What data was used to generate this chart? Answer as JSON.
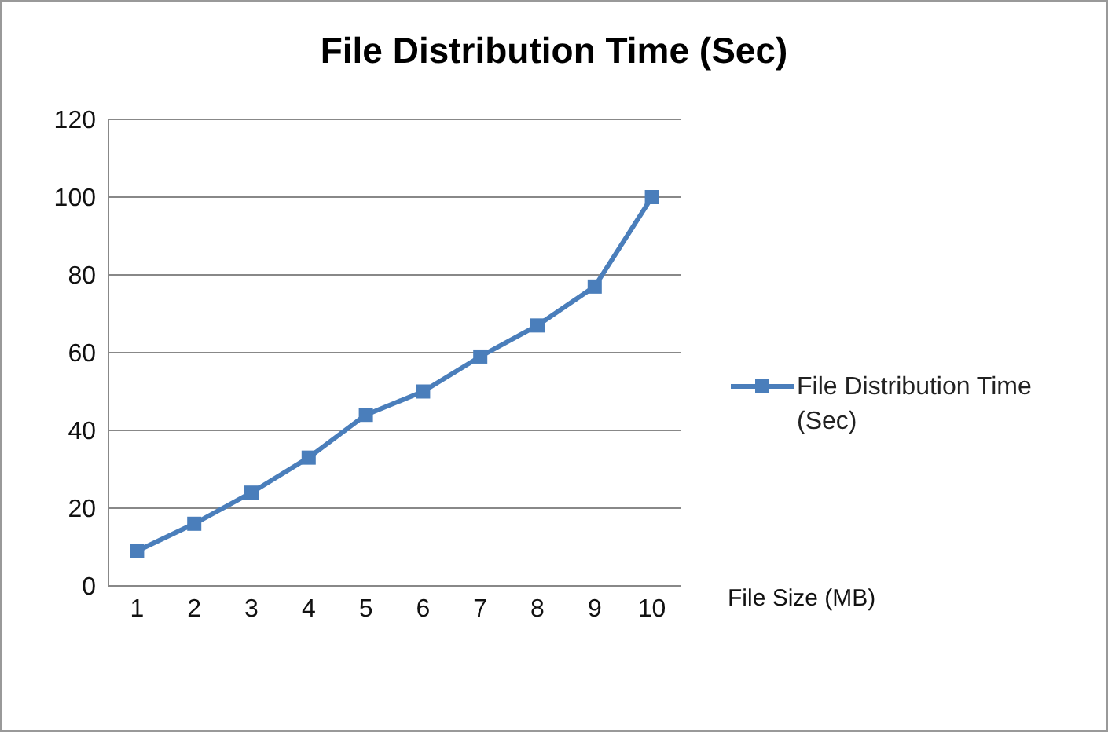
{
  "chart_data": {
    "type": "line",
    "title": "File Distribution Time (Sec)",
    "xlabel": "File Size (MB)",
    "categories": [
      "1",
      "2",
      "3",
      "4",
      "5",
      "6",
      "7",
      "8",
      "9",
      "10"
    ],
    "series": [
      {
        "name": "File Distribution Time (Sec)",
        "color": "#4a7ebb",
        "values": [
          9,
          16,
          24,
          33,
          44,
          50,
          59,
          67,
          77,
          100
        ]
      }
    ],
    "ylim": [
      0,
      120
    ],
    "yticks": [
      0,
      20,
      40,
      60,
      80,
      100,
      120
    ],
    "grid": "y",
    "legend": "right",
    "marker": "square",
    "line_style": "solid"
  }
}
